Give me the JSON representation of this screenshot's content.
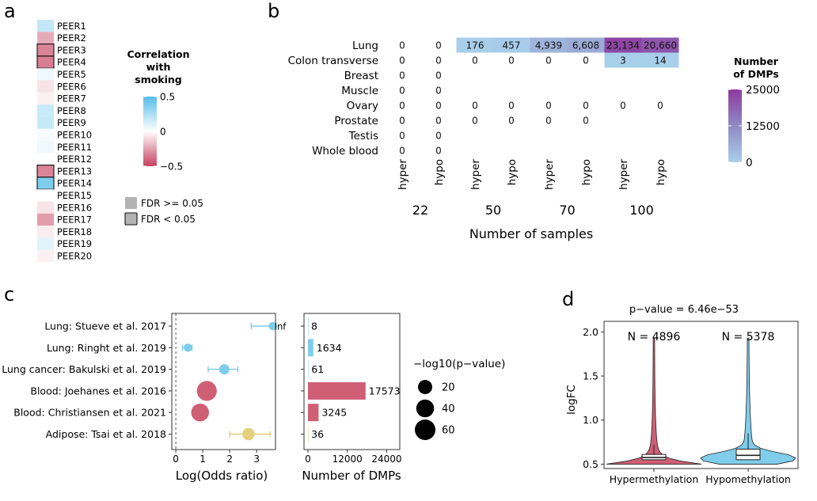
{
  "panel_labels": {
    "a": "a",
    "b": "b",
    "c": "c",
    "d": "d"
  },
  "panel_a": {
    "peers": [
      {
        "label": "PEER1",
        "r": 0.18,
        "sig": false
      },
      {
        "label": "PEER2",
        "r": -0.22,
        "sig": false
      },
      {
        "label": "PEER3",
        "r": -0.32,
        "sig": true
      },
      {
        "label": "PEER4",
        "r": -0.34,
        "sig": true
      },
      {
        "label": "PEER5",
        "r": 0.05,
        "sig": false
      },
      {
        "label": "PEER6",
        "r": -0.07,
        "sig": false
      },
      {
        "label": "PEER7",
        "r": -0.04,
        "sig": false
      },
      {
        "label": "PEER8",
        "r": 0.16,
        "sig": false
      },
      {
        "label": "PEER9",
        "r": 0.17,
        "sig": false
      },
      {
        "label": "PEER10",
        "r": 0.03,
        "sig": false
      },
      {
        "label": "PEER11",
        "r": 0.05,
        "sig": false
      },
      {
        "label": "PEER12",
        "r": 0.0,
        "sig": false
      },
      {
        "label": "PEER13",
        "r": -0.32,
        "sig": true
      },
      {
        "label": "PEER14",
        "r": 0.38,
        "sig": true
      },
      {
        "label": "PEER15",
        "r": 0.0,
        "sig": false
      },
      {
        "label": "PEER16",
        "r": -0.07,
        "sig": false
      },
      {
        "label": "PEER17",
        "r": -0.26,
        "sig": false
      },
      {
        "label": "PEER18",
        "r": -0.05,
        "sig": false
      },
      {
        "label": "PEER19",
        "r": 0.09,
        "sig": false
      },
      {
        "label": "PEER20",
        "r": -0.04,
        "sig": false
      }
    ],
    "legend_title": [
      "Correlation",
      "with",
      "smoking"
    ],
    "legend_ticks": [
      {
        "v": 0.5,
        "label": "0.5"
      },
      {
        "v": 0,
        "label": "0"
      },
      {
        "v": -0.5,
        "label": "−0.5"
      }
    ],
    "fdr_legend": [
      {
        "label": "FDR >= 0.05",
        "sig": false
      },
      {
        "label": "FDR < 0.05",
        "sig": true
      }
    ]
  },
  "panel_b": {
    "tissues": [
      "Lung",
      "Colon transverse",
      "Breast",
      "Muscle",
      "Ovary",
      "Prostate",
      "Testis",
      "Whole blood"
    ],
    "columns": [
      {
        "dir": "hyper",
        "n": "22"
      },
      {
        "dir": "hypo",
        "n": "22"
      },
      {
        "dir": "hyper",
        "n": "50"
      },
      {
        "dir": "hypo",
        "n": "50"
      },
      {
        "dir": "hyper",
        "n": "70"
      },
      {
        "dir": "hypo",
        "n": "70"
      },
      {
        "dir": "hyper",
        "n": "100"
      },
      {
        "dir": "hypo",
        "n": "100"
      }
    ],
    "group_labels": [
      "22",
      "50",
      "70",
      "100"
    ],
    "cells": [
      [
        {
          "v": 0,
          "t": "0"
        },
        {
          "v": 0,
          "t": "0"
        },
        {
          "v": 176,
          "t": "176"
        },
        {
          "v": 457,
          "t": "457"
        },
        {
          "v": 4939,
          "t": "4,939"
        },
        {
          "v": 6608,
          "t": "6,608"
        },
        {
          "v": 23134,
          "t": "23,134"
        },
        {
          "v": 20660,
          "t": "20,660"
        }
      ],
      [
        {
          "v": 0,
          "t": "0"
        },
        {
          "v": 0,
          "t": "0"
        },
        {
          "v": 0,
          "t": "0"
        },
        {
          "v": 0,
          "t": "0"
        },
        {
          "v": 0,
          "t": "0"
        },
        {
          "v": 0,
          "t": "0"
        },
        {
          "v": 3,
          "t": "3"
        },
        {
          "v": 14,
          "t": "14"
        }
      ],
      [
        {
          "v": 0,
          "t": "0"
        },
        {
          "v": 0,
          "t": "0"
        },
        null,
        null,
        null,
        null,
        null,
        null
      ],
      [
        {
          "v": 0,
          "t": "0"
        },
        {
          "v": 0,
          "t": "0"
        },
        null,
        null,
        null,
        null,
        null,
        null
      ],
      [
        {
          "v": 0,
          "t": "0"
        },
        {
          "v": 0,
          "t": "0"
        },
        {
          "v": 0,
          "t": "0"
        },
        {
          "v": 0,
          "t": "0"
        },
        {
          "v": 0,
          "t": "0"
        },
        {
          "v": 0,
          "t": "0"
        },
        {
          "v": 0,
          "t": "0"
        },
        {
          "v": 0,
          "t": "0"
        }
      ],
      [
        {
          "v": 0,
          "t": "0"
        },
        {
          "v": 0,
          "t": "0"
        },
        {
          "v": 0,
          "t": "0"
        },
        {
          "v": 0,
          "t": "0"
        },
        {
          "v": 0,
          "t": "0"
        },
        {
          "v": 0,
          "t": "0"
        },
        null,
        null
      ],
      [
        {
          "v": 0,
          "t": "0"
        },
        {
          "v": 0,
          "t": "0"
        },
        null,
        null,
        null,
        null,
        null,
        null
      ],
      [
        {
          "v": 0,
          "t": "0"
        },
        {
          "v": 0,
          "t": "0"
        },
        null,
        null,
        null,
        null,
        null,
        null
      ]
    ],
    "xlabel": "Number of samples",
    "legend_title": [
      "Number",
      "of DMPs"
    ],
    "legend_ticks": [
      {
        "v": 25000,
        "label": "25000"
      },
      {
        "v": 12500,
        "label": "12500"
      },
      {
        "v": 0,
        "label": "0"
      }
    ]
  },
  "panel_c": {
    "studies": [
      {
        "label": "Lung: Stueve et al. 2017",
        "logor": 3.6,
        "lo": 2.8,
        "hi": 3.6,
        "inf_label": "Inf",
        "p": 2,
        "color": "#7fcdea",
        "dmps": 8,
        "dmps_label": "8"
      },
      {
        "label": "Lung: Ringht et al. 2019",
        "logor": 0.45,
        "lo": 0.25,
        "hi": 0.6,
        "inf_label": "",
        "p": 2,
        "color": "#7fcdea",
        "dmps": 1634,
        "dmps_label": "1634"
      },
      {
        "label": "Lung cancer: Bakulski et al. 2019",
        "logor": 1.8,
        "lo": 1.2,
        "hi": 2.3,
        "inf_label": "",
        "p": 6,
        "color": "#7fcdea",
        "dmps": 61,
        "dmps_label": "61"
      },
      {
        "label": "Blood: Joehanes et al. 2016",
        "logor": 1.15,
        "lo": 1.15,
        "hi": 1.15,
        "inf_label": "",
        "p": 55,
        "color": "#cf5f75",
        "dmps": 17573,
        "dmps_label": "17573"
      },
      {
        "label": "Blood: Christiansen et al. 2021",
        "logor": 0.9,
        "lo": 0.9,
        "hi": 0.9,
        "inf_label": "",
        "p": 40,
        "color": "#cf5f75",
        "dmps": 3245,
        "dmps_label": "3245"
      },
      {
        "label": "Adipose: Tsai et al. 2018",
        "logor": 2.7,
        "lo": 2.0,
        "hi": 3.5,
        "inf_label": "",
        "p": 12,
        "color": "#e3cf7c",
        "dmps": 36,
        "dmps_label": "36"
      }
    ],
    "or_axis": {
      "xlabel": "Log(Odds ratio)",
      "ticks": [
        {
          "v": 0,
          "label": "0"
        },
        {
          "v": 1,
          "label": "1"
        },
        {
          "v": 2,
          "label": "2"
        },
        {
          "v": 3,
          "label": "3"
        }
      ],
      "xlim": [
        -0.15,
        3.7
      ]
    },
    "dmp_axis": {
      "xlabel": "Number of DMPs",
      "ticks": [
        {
          "v": 0,
          "label": "0"
        },
        {
          "v": 12000,
          "label": "12000"
        },
        {
          "v": 24000,
          "label": "24000"
        }
      ],
      "xlim": [
        0,
        28000
      ]
    },
    "size_legend": {
      "title": "−log10(p−value)",
      "entries": [
        {
          "v": 20,
          "label": "20"
        },
        {
          "v": 40,
          "label": "40"
        },
        {
          "v": 60,
          "label": "60"
        }
      ]
    }
  },
  "panel_d": {
    "title": "p−value = 6.46e−53",
    "ylabel": "logFC",
    "ylim": [
      0.45,
      2.12
    ],
    "yticks": [
      {
        "v": 0.5,
        "label": "0.5"
      },
      {
        "v": 1.0,
        "label": "1.0"
      },
      {
        "v": 1.5,
        "label": "1.5"
      },
      {
        "v": 2.0,
        "label": "2.0"
      }
    ],
    "groups": [
      {
        "label": "Hypermethylation",
        "n_label": "N = 4896",
        "color": "#cf5f75",
        "min": 0.5,
        "max": 1.93,
        "q1": 0.55,
        "median": 0.575,
        "q3": 0.61,
        "wlo": 0.5,
        "whi": 0.72
      },
      {
        "label": "Hypomethylation",
        "n_label": "N = 5378",
        "color": "#7fcdea",
        "min": 0.5,
        "max": 1.93,
        "q1": 0.55,
        "median": 0.6,
        "q3": 0.67,
        "wlo": 0.5,
        "whi": 0.85
      }
    ]
  }
}
